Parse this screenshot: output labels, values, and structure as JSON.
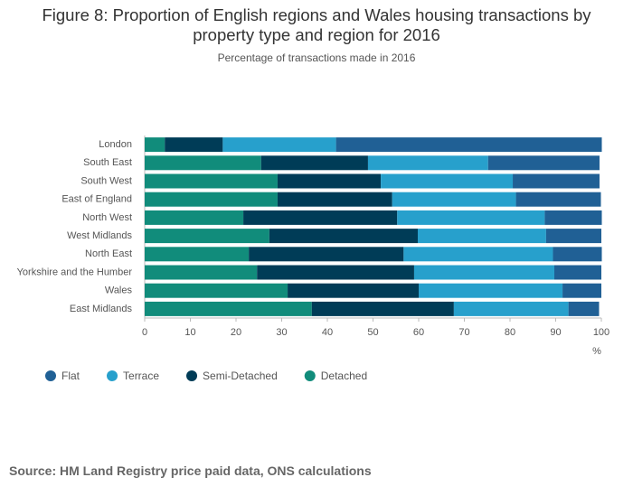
{
  "chart_data": {
    "type": "stacked-bar-horizontal",
    "title": "Figure 8: Proportion of English regions and Wales housing transactions by property type and region for 2016",
    "subtitle": "Percentage of transactions made in 2016",
    "x_label": "%",
    "source": "Source: HM Land Registry price paid data, ONS calculations",
    "categories": [
      "London",
      "South East",
      "South West",
      "East of England",
      "North West",
      "West Midlands",
      "North East",
      "Yorkshire and the Humber",
      "Wales",
      "East Midlands"
    ],
    "series": [
      {
        "name": "Detached",
        "color": "#118c7b",
        "values": [
          4.4,
          25.5,
          29.1,
          29.1,
          21.6,
          27.3,
          22.8,
          24.6,
          31.3,
          36.6
        ]
      },
      {
        "name": "Semi-Detached",
        "color": "#003c57",
        "values": [
          12.7,
          23.4,
          22.6,
          25.1,
          33.7,
          32.5,
          33.9,
          34.4,
          28.7,
          31.1
        ]
      },
      {
        "name": "Terrace",
        "color": "#27a0cc",
        "values": [
          24.8,
          26.3,
          28.9,
          27.1,
          32.3,
          28.1,
          32.7,
          30.7,
          31.5,
          25.1
        ]
      },
      {
        "name": "Flat",
        "color": "#206095",
        "values": [
          58.2,
          24.4,
          19.0,
          18.6,
          12.5,
          12.1,
          10.7,
          10.3,
          8.5,
          6.7
        ]
      }
    ],
    "xlim": [
      0,
      100
    ],
    "xticks": [
      0,
      10,
      20,
      30,
      40,
      50,
      60,
      70,
      80,
      90,
      100
    ]
  }
}
